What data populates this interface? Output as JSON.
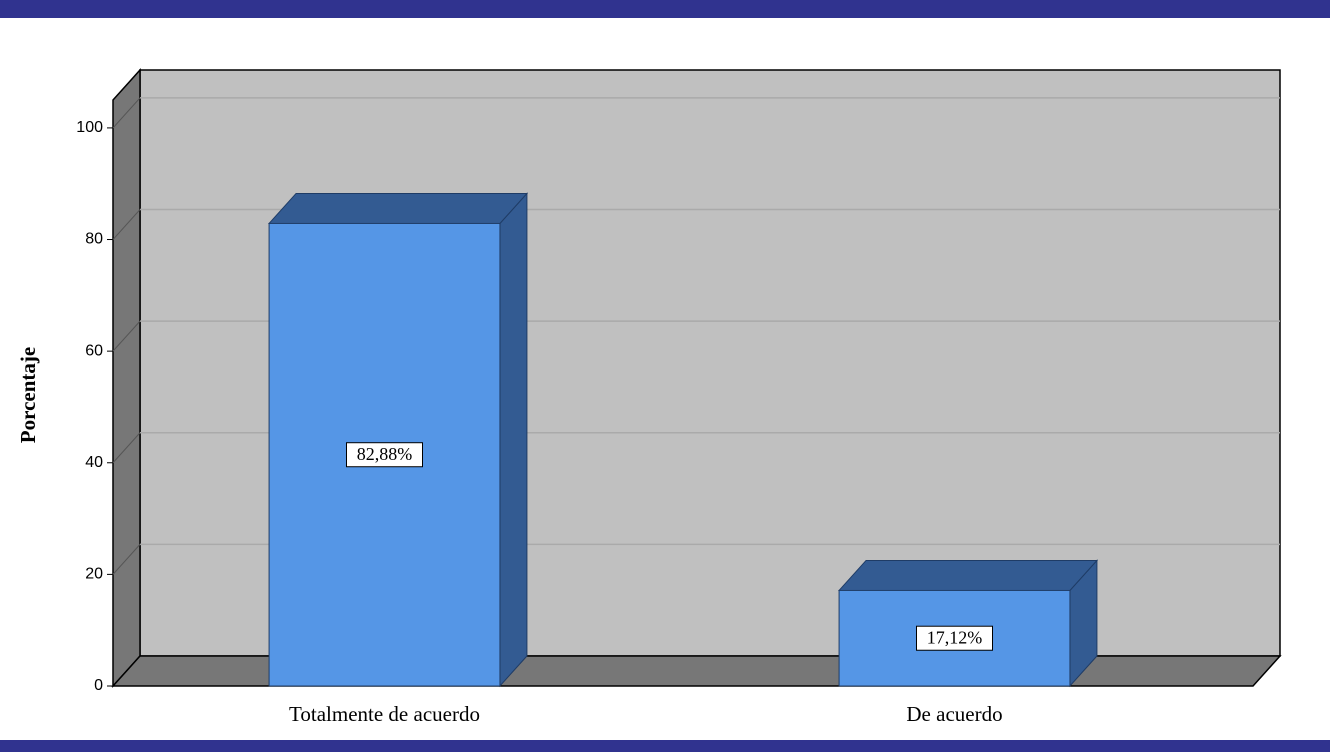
{
  "chart_data": {
    "type": "bar3d",
    "y_label": "Porcentaje",
    "categories": [
      "Totalmente de acuerdo",
      "De acuerdo"
    ],
    "values": [
      82.88,
      17.12
    ],
    "value_labels": [
      "82,88%",
      "17,12%"
    ],
    "color": "#5596e6",
    "ylim": [
      0,
      105
    ],
    "yticks": [
      0,
      20,
      40,
      60,
      80,
      100
    ],
    "grid": true
  }
}
